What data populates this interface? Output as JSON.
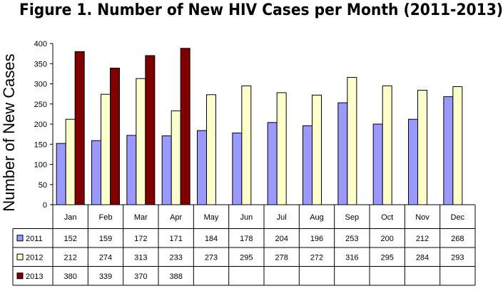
{
  "chart_data": {
    "type": "bar",
    "title": "Figure 1. Number of New HIV Cases per Month (2011-2013)",
    "xlabel": "",
    "ylabel": "Number of New Cases",
    "ylim": [
      0,
      400
    ],
    "yticks": [
      0,
      50,
      100,
      150,
      200,
      250,
      300,
      350,
      400
    ],
    "grid": false,
    "legend": "data-table",
    "categories": [
      "Jan",
      "Feb",
      "Mar",
      "Apr",
      "May",
      "Jun",
      "Jul",
      "Aug",
      "Sep",
      "Oct",
      "Nov",
      "Dec"
    ],
    "series": [
      {
        "name": "2011",
        "color": "#9999ff",
        "values": [
          152,
          159,
          172,
          171,
          184,
          178,
          204,
          196,
          253,
          200,
          212,
          268
        ]
      },
      {
        "name": "2012",
        "color": "#ffffcc",
        "values": [
          212,
          274,
          313,
          233,
          273,
          295,
          278,
          272,
          316,
          295,
          284,
          293
        ]
      },
      {
        "name": "2013",
        "color": "#800000",
        "values": [
          380,
          339,
          370,
          388,
          null,
          null,
          null,
          null,
          null,
          null,
          null,
          null
        ]
      }
    ]
  }
}
